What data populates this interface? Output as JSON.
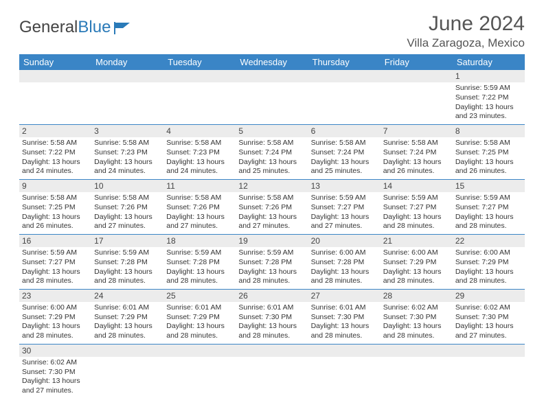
{
  "brand": {
    "name1": "General",
    "name2": "Blue"
  },
  "title": "June 2024",
  "location": "Villa Zaragoza, Mexico",
  "colors": {
    "header_bg": "#3a85c6",
    "header_fg": "#ffffff",
    "daynum_bg": "#ececec",
    "rule": "#3a85c6",
    "brand_blue": "#2a7ab8"
  },
  "weekdays": [
    "Sunday",
    "Monday",
    "Tuesday",
    "Wednesday",
    "Thursday",
    "Friday",
    "Saturday"
  ],
  "layout": {
    "first_weekday_index": 6,
    "days_in_month": 30
  },
  "days": {
    "1": {
      "sunrise": "5:59 AM",
      "sunset": "7:22 PM",
      "daylight": "13 hours and 23 minutes."
    },
    "2": {
      "sunrise": "5:58 AM",
      "sunset": "7:22 PM",
      "daylight": "13 hours and 24 minutes."
    },
    "3": {
      "sunrise": "5:58 AM",
      "sunset": "7:23 PM",
      "daylight": "13 hours and 24 minutes."
    },
    "4": {
      "sunrise": "5:58 AM",
      "sunset": "7:23 PM",
      "daylight": "13 hours and 24 minutes."
    },
    "5": {
      "sunrise": "5:58 AM",
      "sunset": "7:24 PM",
      "daylight": "13 hours and 25 minutes."
    },
    "6": {
      "sunrise": "5:58 AM",
      "sunset": "7:24 PM",
      "daylight": "13 hours and 25 minutes."
    },
    "7": {
      "sunrise": "5:58 AM",
      "sunset": "7:24 PM",
      "daylight": "13 hours and 26 minutes."
    },
    "8": {
      "sunrise": "5:58 AM",
      "sunset": "7:25 PM",
      "daylight": "13 hours and 26 minutes."
    },
    "9": {
      "sunrise": "5:58 AM",
      "sunset": "7:25 PM",
      "daylight": "13 hours and 26 minutes."
    },
    "10": {
      "sunrise": "5:58 AM",
      "sunset": "7:26 PM",
      "daylight": "13 hours and 27 minutes."
    },
    "11": {
      "sunrise": "5:58 AM",
      "sunset": "7:26 PM",
      "daylight": "13 hours and 27 minutes."
    },
    "12": {
      "sunrise": "5:58 AM",
      "sunset": "7:26 PM",
      "daylight": "13 hours and 27 minutes."
    },
    "13": {
      "sunrise": "5:59 AM",
      "sunset": "7:27 PM",
      "daylight": "13 hours and 27 minutes."
    },
    "14": {
      "sunrise": "5:59 AM",
      "sunset": "7:27 PM",
      "daylight": "13 hours and 28 minutes."
    },
    "15": {
      "sunrise": "5:59 AM",
      "sunset": "7:27 PM",
      "daylight": "13 hours and 28 minutes."
    },
    "16": {
      "sunrise": "5:59 AM",
      "sunset": "7:27 PM",
      "daylight": "13 hours and 28 minutes."
    },
    "17": {
      "sunrise": "5:59 AM",
      "sunset": "7:28 PM",
      "daylight": "13 hours and 28 minutes."
    },
    "18": {
      "sunrise": "5:59 AM",
      "sunset": "7:28 PM",
      "daylight": "13 hours and 28 minutes."
    },
    "19": {
      "sunrise": "5:59 AM",
      "sunset": "7:28 PM",
      "daylight": "13 hours and 28 minutes."
    },
    "20": {
      "sunrise": "6:00 AM",
      "sunset": "7:28 PM",
      "daylight": "13 hours and 28 minutes."
    },
    "21": {
      "sunrise": "6:00 AM",
      "sunset": "7:29 PM",
      "daylight": "13 hours and 28 minutes."
    },
    "22": {
      "sunrise": "6:00 AM",
      "sunset": "7:29 PM",
      "daylight": "13 hours and 28 minutes."
    },
    "23": {
      "sunrise": "6:00 AM",
      "sunset": "7:29 PM",
      "daylight": "13 hours and 28 minutes."
    },
    "24": {
      "sunrise": "6:01 AM",
      "sunset": "7:29 PM",
      "daylight": "13 hours and 28 minutes."
    },
    "25": {
      "sunrise": "6:01 AM",
      "sunset": "7:29 PM",
      "daylight": "13 hours and 28 minutes."
    },
    "26": {
      "sunrise": "6:01 AM",
      "sunset": "7:30 PM",
      "daylight": "13 hours and 28 minutes."
    },
    "27": {
      "sunrise": "6:01 AM",
      "sunset": "7:30 PM",
      "daylight": "13 hours and 28 minutes."
    },
    "28": {
      "sunrise": "6:02 AM",
      "sunset": "7:30 PM",
      "daylight": "13 hours and 28 minutes."
    },
    "29": {
      "sunrise": "6:02 AM",
      "sunset": "7:30 PM",
      "daylight": "13 hours and 27 minutes."
    },
    "30": {
      "sunrise": "6:02 AM",
      "sunset": "7:30 PM",
      "daylight": "13 hours and 27 minutes."
    }
  },
  "labels": {
    "sunrise": "Sunrise:",
    "sunset": "Sunset:",
    "daylight": "Daylight:"
  }
}
